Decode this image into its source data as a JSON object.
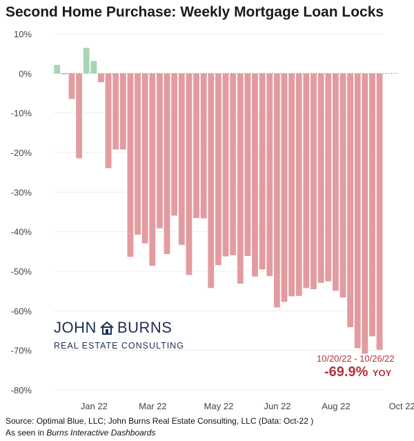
{
  "chart_data": {
    "type": "bar",
    "title": "Second Home Purchase: Weekly Mortgage Loan Locks",
    "xlabel": "",
    "ylabel": "",
    "ylim": [
      -80,
      10
    ],
    "y_ticks": [
      "10%",
      "0%",
      "-10%",
      "-20%",
      "-30%",
      "-40%",
      "-50%",
      "-60%",
      "-70%",
      "-80%"
    ],
    "y_tick_values": [
      10,
      0,
      -10,
      -20,
      -30,
      -40,
      -50,
      -60,
      -70,
      -80
    ],
    "x_tick_labels": [
      {
        "label": "Jan 22",
        "index": 5
      },
      {
        "label": "Mar 22",
        "index": 13
      },
      {
        "label": "May 22",
        "index": 22
      },
      {
        "label": "Jun 22",
        "index": 30
      },
      {
        "label": "Aug 22",
        "index": 38
      },
      {
        "label": "Oct 22",
        "index": 47
      }
    ],
    "values": [
      2.2,
      -0.3,
      -6.5,
      -21.5,
      6.5,
      3.2,
      -2.3,
      -24.0,
      -19.3,
      -19.3,
      -46.4,
      -40.8,
      -43.0,
      -48.7,
      -39.2,
      -45.7,
      -36.0,
      -43.4,
      -51.0,
      -36.6,
      -36.7,
      -54.3,
      -48.5,
      -46.3,
      -46.0,
      -53.2,
      -46.2,
      -51.4,
      -49.6,
      -51.3,
      -59.2,
      -57.8,
      -56.4,
      -56.3,
      -54.3,
      -54.6,
      -53.0,
      -52.6,
      -55.0,
      -56.7,
      -64.2,
      -69.5,
      -70.9,
      -66.5,
      -69.9
    ],
    "positive_color": "#a8d5b4",
    "negative_color": "#e39ba0",
    "annotation_range": "10/20/22 - 10/26/22",
    "annotation_value": "-69.9%",
    "annotation_suffix": "YOY"
  },
  "logo": {
    "name_left": "JOHN",
    "name_right": "BURNS",
    "subtitle": "REAL ESTATE CONSULTING"
  },
  "footer": {
    "source": "Source: Optimal Blue, LLC; John Burns Real Estate Consulting, LLC (Data: Oct-22 )",
    "seen_prefix": "As seen in ",
    "seen_italic": "Burns Interactive Dashboards"
  }
}
